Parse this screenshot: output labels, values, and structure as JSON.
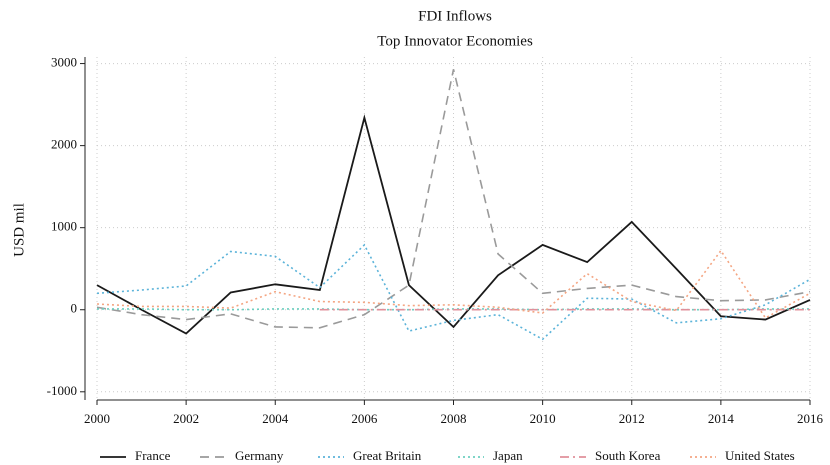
{
  "chart_data": {
    "type": "line",
    "title": "FDI Inflows",
    "subtitle": "Top Innovator Economies",
    "y_label": "USD mil",
    "x": [
      2000,
      2001,
      2002,
      2003,
      2004,
      2005,
      2006,
      2007,
      2008,
      2009,
      2010,
      2011,
      2012,
      2013,
      2014,
      2015,
      2016
    ],
    "series": [
      {
        "name": "France",
        "color": "#1a1a1a",
        "line_style": "solid",
        "values": [
          300,
          0,
          -290,
          210,
          310,
          240,
          2340,
          300,
          -210,
          420,
          790,
          580,
          1070,
          500,
          -80,
          -120,
          120
        ]
      },
      {
        "name": "Germany",
        "color": "#9a9a9a",
        "line_style": "dash",
        "values": [
          30,
          -60,
          -120,
          -50,
          -210,
          -220,
          -60,
          300,
          2930,
          680,
          200,
          260,
          300,
          160,
          110,
          120,
          220
        ]
      },
      {
        "name": "Great Britain",
        "color": "#5bb3d9",
        "line_style": "dot",
        "values": [
          200,
          240,
          290,
          710,
          650,
          270,
          790,
          -260,
          -130,
          -60,
          -360,
          140,
          130,
          -160,
          -110,
          60,
          370
        ]
      },
      {
        "name": "Japan",
        "color": "#6ccfc0",
        "line_style": "dot",
        "values": [
          10,
          10,
          0,
          0,
          10,
          10,
          0,
          0,
          10,
          10,
          0,
          10,
          10,
          0,
          0,
          10,
          10
        ]
      },
      {
        "name": "South Korea",
        "color": "#e0909b",
        "line_style": "dashdot",
        "values": [
          null,
          null,
          null,
          null,
          null,
          0,
          0,
          0,
          0,
          0,
          0,
          0,
          0,
          0,
          0,
          0,
          0
        ]
      },
      {
        "name": "United States",
        "color": "#f4a582",
        "line_style": "dot",
        "values": [
          70,
          40,
          40,
          20,
          220,
          100,
          90,
          50,
          60,
          30,
          -40,
          440,
          100,
          -10,
          720,
          -100,
          200
        ]
      }
    ],
    "xlim": [
      2000,
      2016
    ],
    "xticks": [
      2000,
      2002,
      2004,
      2006,
      2008,
      2010,
      2012,
      2014,
      2016
    ],
    "ylim": [
      -1100,
      3080
    ],
    "yticks": [
      -1000,
      0,
      1000,
      2000,
      3000
    ],
    "grid": true,
    "legend": "bottom"
  }
}
